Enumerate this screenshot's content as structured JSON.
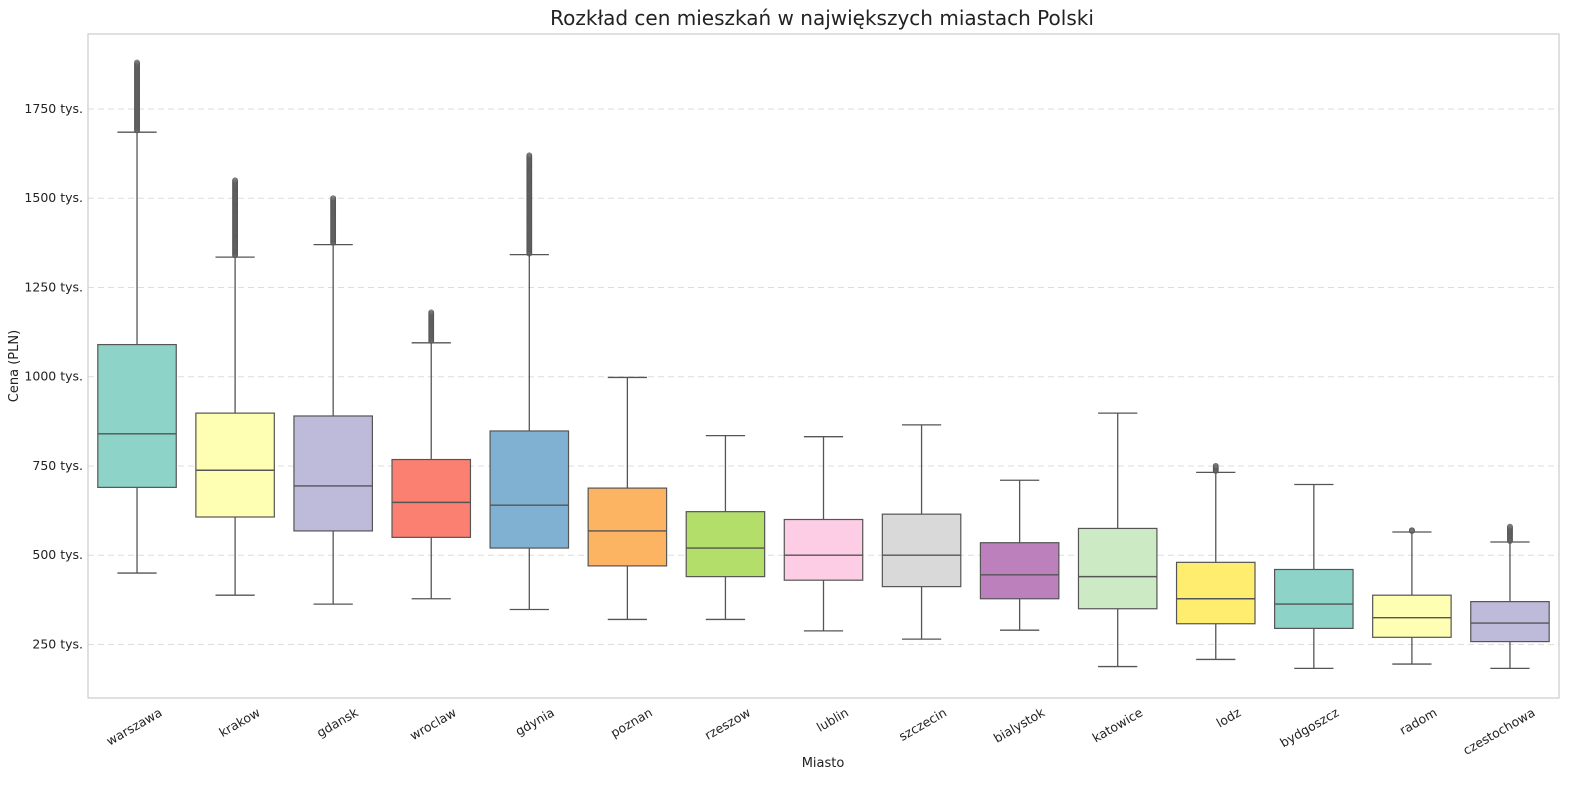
{
  "chart_data": {
    "type": "box",
    "title": "Rozkład cen mieszkań w największych miastach Polski",
    "xlabel": "Miasto",
    "ylabel": "Cena (PLN)",
    "ylim": [
      100,
      1960
    ],
    "yticks": [
      {
        "value": 250,
        "label": "250 tys."
      },
      {
        "value": 500,
        "label": "500 tys."
      },
      {
        "value": 750,
        "label": "750 tys."
      },
      {
        "value": 1000,
        "label": "1000 tys."
      },
      {
        "value": 1250,
        "label": "1250 tys."
      },
      {
        "value": 1500,
        "label": "1500 tys."
      },
      {
        "value": 1750,
        "label": "1750 tys."
      }
    ],
    "value_unit": "tys. PLN",
    "grid": "horizontal dashed",
    "categories": [
      "warszawa",
      "krakow",
      "gdansk",
      "wroclaw",
      "gdynia",
      "poznan",
      "rzeszow",
      "lublin",
      "szczecin",
      "bialystok",
      "katowice",
      "lodz",
      "bydgoszcz",
      "radom",
      "czestochowa"
    ],
    "boxes": [
      {
        "category": "warszawa",
        "whisker_low": 450,
        "q1": 690,
        "median": 840,
        "q3": 1090,
        "whisker_high": 1685,
        "outliers_range": [
          1690,
          1880
        ],
        "color": "#8dd3c7"
      },
      {
        "category": "krakow",
        "whisker_low": 388,
        "q1": 607,
        "median": 738,
        "q3": 898,
        "whisker_high": 1335,
        "outliers_range": [
          1340,
          1550
        ],
        "color": "#ffffb3"
      },
      {
        "category": "gdansk",
        "whisker_low": 363,
        "q1": 568,
        "median": 694,
        "q3": 890,
        "whisker_high": 1370,
        "outliers_range": [
          1375,
          1500
        ],
        "color": "#bebada"
      },
      {
        "category": "wroclaw",
        "whisker_low": 378,
        "q1": 550,
        "median": 648,
        "q3": 768,
        "whisker_high": 1095,
        "outliers_range": [
          1100,
          1180
        ],
        "color": "#fb8072"
      },
      {
        "category": "gdynia",
        "whisker_low": 348,
        "q1": 520,
        "median": 640,
        "q3": 848,
        "whisker_high": 1342,
        "outliers_range": [
          1345,
          1620
        ],
        "color": "#80b1d3"
      },
      {
        "category": "poznan",
        "whisker_low": 320,
        "q1": 470,
        "median": 568,
        "q3": 688,
        "whisker_high": 998,
        "outliers_range": null,
        "color": "#fdb462"
      },
      {
        "category": "rzeszow",
        "whisker_low": 320,
        "q1": 440,
        "median": 520,
        "q3": 622,
        "whisker_high": 835,
        "outliers_range": null,
        "color": "#b3de69"
      },
      {
        "category": "lublin",
        "whisker_low": 288,
        "q1": 430,
        "median": 500,
        "q3": 600,
        "whisker_high": 832,
        "outliers_range": null,
        "color": "#fccde5"
      },
      {
        "category": "szczecin",
        "whisker_low": 265,
        "q1": 412,
        "median": 500,
        "q3": 615,
        "whisker_high": 865,
        "outliers_range": null,
        "color": "#d9d9d9"
      },
      {
        "category": "bialystok",
        "whisker_low": 290,
        "q1": 378,
        "median": 445,
        "q3": 535,
        "whisker_high": 710,
        "outliers_range": null,
        "color": "#bc80bd"
      },
      {
        "category": "katowice",
        "whisker_low": 188,
        "q1": 350,
        "median": 440,
        "q3": 575,
        "whisker_high": 898,
        "outliers_range": null,
        "color": "#ccebc5"
      },
      {
        "category": "lodz",
        "whisker_low": 208,
        "q1": 308,
        "median": 378,
        "q3": 480,
        "whisker_high": 732,
        "outliers_range": [
          736,
          750
        ],
        "color": "#ffed6f"
      },
      {
        "category": "bydgoszcz",
        "whisker_low": 183,
        "q1": 295,
        "median": 363,
        "q3": 460,
        "whisker_high": 698,
        "outliers_range": null,
        "color": "#8dd3c7"
      },
      {
        "category": "radom",
        "whisker_low": 195,
        "q1": 270,
        "median": 325,
        "q3": 388,
        "whisker_high": 565,
        "outliers_range": [
          568,
          570
        ],
        "color": "#ffffb3"
      },
      {
        "category": "czestochowa",
        "whisker_low": 183,
        "q1": 258,
        "median": 310,
        "q3": 370,
        "whisker_high": 537,
        "outliers_range": [
          540,
          580
        ],
        "color": "#bebada"
      }
    ]
  }
}
